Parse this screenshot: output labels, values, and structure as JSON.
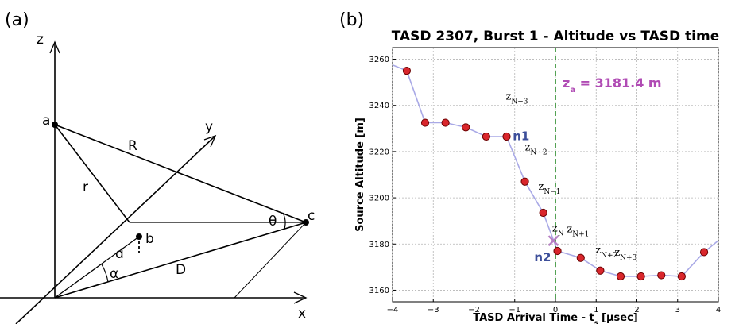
{
  "colors": {
    "line": "#a9a9e6",
    "marker_fill": "#d9262c",
    "marker_edge": "#6b0000",
    "dashed": "#2a8a2a",
    "cross": "#b67fc4",
    "za_text": "#b04bb4",
    "n_label": "#3d4f9a"
  },
  "panel_a": {
    "label": "(a)",
    "axes": {
      "z": "z",
      "y": "y",
      "x": "x"
    },
    "points": {
      "a": "a",
      "b": "b",
      "c": "c"
    },
    "segments": {
      "R": "R",
      "r": "r",
      "d": "d",
      "D": "D"
    },
    "angles": {
      "theta": "θ",
      "alpha": "α"
    }
  },
  "panel_b": {
    "label": "(b)",
    "annotation_za": {
      "sym": "z",
      "sub": "a",
      "value": " = 3181.4 m"
    },
    "labels": [
      {
        "key": "zN-3",
        "sym": "z",
        "sub": "N−3",
        "x": -1.22,
        "y": 3242.5
      },
      {
        "key": "zN-2",
        "sym": "z",
        "sub": "N−2",
        "x": -0.75,
        "y": 3220.5
      },
      {
        "key": "zN-1",
        "sym": "z",
        "sub": "N−1",
        "x": -0.42,
        "y": 3203.5
      },
      {
        "key": "zN",
        "sym": "z",
        "sub": "N",
        "x": -0.08,
        "y": 3185.5
      },
      {
        "key": "zN+1",
        "sym": "z",
        "sub": "N+1",
        "x": 0.28,
        "y": 3185.0
      },
      {
        "key": "zN+2",
        "sym": "z",
        "sub": "N+2",
        "x": 0.98,
        "y": 3176.0
      },
      {
        "key": "zN+3",
        "sym": "z",
        "sub": "N+3",
        "x": 1.45,
        "y": 3175.0
      }
    ],
    "n_labels": [
      {
        "key": "n1",
        "text": "n1",
        "x": -1.05,
        "y": 3225.0
      },
      {
        "key": "n2",
        "text": "n2",
        "x": -0.52,
        "y": 3172.5
      }
    ]
  },
  "chart_data": {
    "type": "line",
    "title": "TASD 2307, Burst 1 - Altitude vs TASD time",
    "xlabel": "TASD Arrival Time - t",
    "xlabel_sub": "s",
    "xlabel_unit": " [μsec]",
    "ylabel": "Source Altitude [m]",
    "xlim": [
      -4,
      4
    ],
    "ylim": [
      3155,
      3265
    ],
    "xticks": [
      -4,
      -3,
      -2,
      -1,
      0,
      1,
      2,
      3,
      4
    ],
    "xtick_labels": [
      "−4",
      "−3",
      "−2",
      "−1",
      "0",
      "1",
      "2",
      "3",
      "4"
    ],
    "yticks": [
      3160,
      3180,
      3200,
      3220,
      3240,
      3260
    ],
    "ytick_labels": [
      "3160",
      "3180",
      "3200",
      "3220",
      "3240",
      "3260"
    ],
    "grid": true,
    "series": [
      {
        "line_x": [
          -4.0,
          -3.65,
          -3.2,
          -2.7,
          -2.2,
          -1.7,
          -1.2,
          -0.75,
          -0.3,
          0.05,
          0.62,
          1.1,
          1.6,
          2.1,
          2.6,
          3.1,
          3.65,
          4.0
        ],
        "line_y": [
          3257.5,
          3255,
          3232.5,
          3232.5,
          3230.5,
          3226.5,
          3226.5,
          3207,
          3193.5,
          3177,
          3174,
          3168.5,
          3166,
          3166,
          3166.5,
          3166,
          3176.5,
          3181.5
        ],
        "marker_x": [
          -3.65,
          -3.2,
          -2.7,
          -2.2,
          -1.7,
          -1.2,
          -0.75,
          -0.3,
          0.05,
          0.62,
          1.1,
          1.6,
          2.1,
          2.6,
          3.1,
          3.65
        ],
        "marker_y": [
          3255,
          3232.5,
          3232.5,
          3230.5,
          3226.5,
          3226.5,
          3207,
          3193.5,
          3177,
          3174,
          3168.5,
          3166,
          3166,
          3166.5,
          3166,
          3176.5
        ]
      }
    ],
    "vline_x": 0,
    "cross_point": {
      "x": -0.05,
      "y": 3181.4
    }
  }
}
